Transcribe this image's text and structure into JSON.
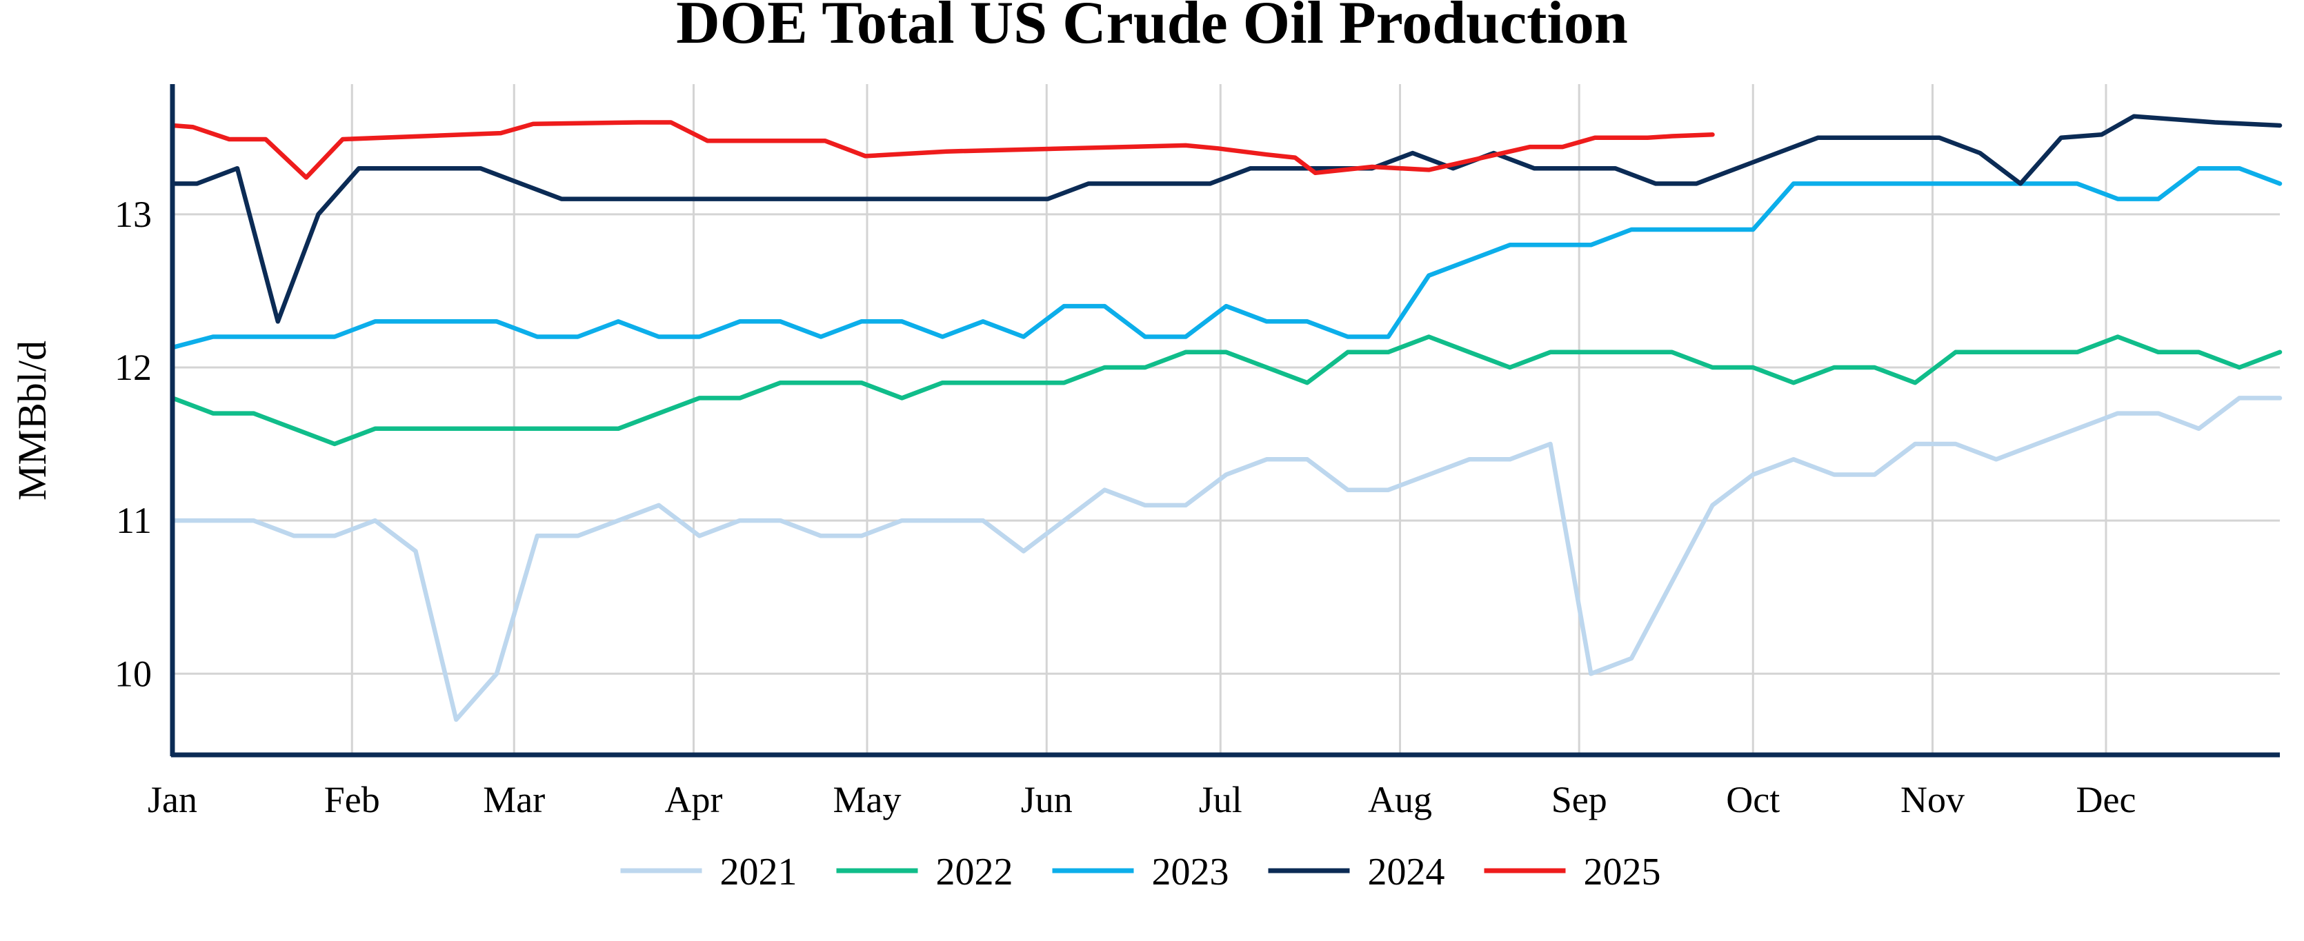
{
  "chart_data": {
    "type": "line",
    "title": "DOE Total US Crude Oil Production",
    "ylabel": "MMBbl/d",
    "xlabel": "",
    "x_unit": "week of year",
    "x_range": [
      1,
      53
    ],
    "ylim": [
      9.47,
      13.85
    ],
    "yticks": [
      10,
      11,
      12,
      13
    ],
    "ytick_labels": [
      "10",
      "11",
      "12",
      "13"
    ],
    "month_ticks": [
      {
        "label": "Jan",
        "week": 1.0
      },
      {
        "label": "Feb",
        "week": 5.43
      },
      {
        "label": "Mar",
        "week": 9.43
      },
      {
        "label": "Apr",
        "week": 13.86
      },
      {
        "label": "May",
        "week": 18.14
      },
      {
        "label": "Jun",
        "week": 22.57
      },
      {
        "label": "Jul",
        "week": 26.86
      },
      {
        "label": "Aug",
        "week": 31.29
      },
      {
        "label": "Sep",
        "week": 35.71
      },
      {
        "label": "Oct",
        "week": 40.0
      },
      {
        "label": "Nov",
        "week": 44.43
      },
      {
        "label": "Dec",
        "week": 48.71
      }
    ],
    "grid": true,
    "legend_position": "bottom",
    "series": [
      {
        "name": "2021",
        "color": "#bdd7ee",
        "points": [
          [
            1,
            11.0
          ],
          [
            2,
            11.0
          ],
          [
            3,
            11.0
          ],
          [
            4,
            10.9
          ],
          [
            5,
            10.9
          ],
          [
            6,
            11.0
          ],
          [
            7,
            10.8
          ],
          [
            8,
            9.7
          ],
          [
            9,
            10.0
          ],
          [
            10,
            10.9
          ],
          [
            11,
            10.9
          ],
          [
            12,
            11.0
          ],
          [
            13,
            11.1
          ],
          [
            14,
            10.9
          ],
          [
            15,
            11.0
          ],
          [
            16,
            11.0
          ],
          [
            17,
            10.9
          ],
          [
            18,
            10.9
          ],
          [
            19,
            11.0
          ],
          [
            20,
            11.0
          ],
          [
            21,
            11.0
          ],
          [
            22,
            10.8
          ],
          [
            23,
            11.0
          ],
          [
            24,
            11.2
          ],
          [
            25,
            11.1
          ],
          [
            26,
            11.1
          ],
          [
            27,
            11.3
          ],
          [
            28,
            11.4
          ],
          [
            29,
            11.4
          ],
          [
            30,
            11.2
          ],
          [
            31,
            11.2
          ],
          [
            32,
            11.3
          ],
          [
            33,
            11.4
          ],
          [
            34,
            11.4
          ],
          [
            35,
            11.5
          ],
          [
            36,
            10.0
          ],
          [
            37,
            10.1
          ],
          [
            38,
            10.6
          ],
          [
            39,
            11.1
          ],
          [
            40,
            11.3
          ],
          [
            41,
            11.4
          ],
          [
            42,
            11.3
          ],
          [
            43,
            11.3
          ],
          [
            44,
            11.5
          ],
          [
            45,
            11.5
          ],
          [
            46,
            11.4
          ],
          [
            47,
            11.5
          ],
          [
            48,
            11.6
          ],
          [
            49,
            11.7
          ],
          [
            50,
            11.7
          ],
          [
            51,
            11.6
          ],
          [
            52,
            11.8
          ],
          [
            53,
            11.8
          ]
        ]
      },
      {
        "name": "2022",
        "color": "#10bd8a",
        "points": [
          [
            1,
            11.8
          ],
          [
            2,
            11.7
          ],
          [
            3,
            11.7
          ],
          [
            4,
            11.6
          ],
          [
            5,
            11.5
          ],
          [
            6,
            11.6
          ],
          [
            7,
            11.6
          ],
          [
            8,
            11.6
          ],
          [
            9,
            11.6
          ],
          [
            10,
            11.6
          ],
          [
            11,
            11.6
          ],
          [
            12,
            11.6
          ],
          [
            13,
            11.7
          ],
          [
            14,
            11.8
          ],
          [
            15,
            11.8
          ],
          [
            16,
            11.9
          ],
          [
            17,
            11.9
          ],
          [
            18,
            11.9
          ],
          [
            19,
            11.8
          ],
          [
            20,
            11.9
          ],
          [
            21,
            11.9
          ],
          [
            22,
            11.9
          ],
          [
            23,
            11.9
          ],
          [
            24,
            12.0
          ],
          [
            25,
            12.0
          ],
          [
            26,
            12.1
          ],
          [
            27,
            12.1
          ],
          [
            28,
            12.0
          ],
          [
            29,
            11.9
          ],
          [
            30,
            12.1
          ],
          [
            31,
            12.1
          ],
          [
            32,
            12.2
          ],
          [
            33,
            12.1
          ],
          [
            34,
            12.0
          ],
          [
            35,
            12.1
          ],
          [
            36,
            12.1
          ],
          [
            37,
            12.1
          ],
          [
            38,
            12.1
          ],
          [
            39,
            12.0
          ],
          [
            40,
            12.0
          ],
          [
            41,
            11.9
          ],
          [
            42,
            12.0
          ],
          [
            43,
            12.0
          ],
          [
            44,
            11.9
          ],
          [
            45,
            12.1
          ],
          [
            46,
            12.1
          ],
          [
            47,
            12.1
          ],
          [
            48,
            12.1
          ],
          [
            49,
            12.2
          ],
          [
            50,
            12.1
          ],
          [
            51,
            12.1
          ],
          [
            52,
            12.0
          ],
          [
            53,
            12.1
          ]
        ]
      },
      {
        "name": "2023",
        "color": "#0caeea",
        "points": [
          [
            1,
            12.13
          ],
          [
            2,
            12.2
          ],
          [
            3,
            12.2
          ],
          [
            4,
            12.2
          ],
          [
            5,
            12.2
          ],
          [
            6,
            12.3
          ],
          [
            7,
            12.3
          ],
          [
            8,
            12.3
          ],
          [
            9,
            12.3
          ],
          [
            10,
            12.2
          ],
          [
            11,
            12.2
          ],
          [
            12,
            12.3
          ],
          [
            13,
            12.2
          ],
          [
            14,
            12.2
          ],
          [
            15,
            12.3
          ],
          [
            16,
            12.3
          ],
          [
            17,
            12.2
          ],
          [
            18,
            12.3
          ],
          [
            19,
            12.3
          ],
          [
            20,
            12.2
          ],
          [
            21,
            12.3
          ],
          [
            22,
            12.2
          ],
          [
            23,
            12.4
          ],
          [
            24,
            12.4
          ],
          [
            25,
            12.2
          ],
          [
            26,
            12.2
          ],
          [
            27,
            12.4
          ],
          [
            28,
            12.3
          ],
          [
            29,
            12.3
          ],
          [
            30,
            12.2
          ],
          [
            31,
            12.2
          ],
          [
            32,
            12.6
          ],
          [
            33,
            12.7
          ],
          [
            34,
            12.8
          ],
          [
            35,
            12.8
          ],
          [
            36,
            12.8
          ],
          [
            37,
            12.9
          ],
          [
            38,
            12.9
          ],
          [
            39,
            12.9
          ],
          [
            40,
            12.9
          ],
          [
            41,
            13.2
          ],
          [
            42,
            13.2
          ],
          [
            43,
            13.2
          ],
          [
            44,
            13.2
          ],
          [
            45,
            13.2
          ],
          [
            46,
            13.2
          ],
          [
            47,
            13.2
          ],
          [
            48,
            13.2
          ],
          [
            49,
            13.1
          ],
          [
            50,
            13.1
          ],
          [
            51,
            13.3
          ],
          [
            52,
            13.3
          ],
          [
            53,
            13.2
          ]
        ]
      },
      {
        "name": "2024",
        "color": "#0b2b55",
        "points": [
          [
            1,
            13.2
          ],
          [
            1.6,
            13.2
          ],
          [
            2.6,
            13.3
          ],
          [
            3.6,
            12.3
          ],
          [
            4.6,
            13.0
          ],
          [
            5.6,
            13.3
          ],
          [
            6.6,
            13.3
          ],
          [
            7.6,
            13.3
          ],
          [
            8.6,
            13.3
          ],
          [
            9.6,
            13.2
          ],
          [
            10.6,
            13.1
          ],
          [
            11.6,
            13.1
          ],
          [
            12.6,
            13.1
          ],
          [
            13.6,
            13.1
          ],
          [
            14.6,
            13.1
          ],
          [
            15.6,
            13.1
          ],
          [
            16.6,
            13.1
          ],
          [
            17.6,
            13.1
          ],
          [
            18.6,
            13.1
          ],
          [
            19.6,
            13.1
          ],
          [
            20.6,
            13.1
          ],
          [
            21.6,
            13.1
          ],
          [
            22.6,
            13.1
          ],
          [
            23.6,
            13.2
          ],
          [
            24.6,
            13.2
          ],
          [
            25.6,
            13.2
          ],
          [
            26.6,
            13.2
          ],
          [
            27.6,
            13.3
          ],
          [
            28.6,
            13.3
          ],
          [
            29.6,
            13.3
          ],
          [
            30.6,
            13.3
          ],
          [
            31.6,
            13.4
          ],
          [
            32.6,
            13.3
          ],
          [
            33.6,
            13.4
          ],
          [
            34.6,
            13.3
          ],
          [
            35.6,
            13.3
          ],
          [
            36.6,
            13.3
          ],
          [
            37.6,
            13.2
          ],
          [
            38.6,
            13.2
          ],
          [
            39.6,
            13.3
          ],
          [
            40.6,
            13.4
          ],
          [
            41.6,
            13.5
          ],
          [
            42.6,
            13.5
          ],
          [
            43.6,
            13.5
          ],
          [
            44.6,
            13.5
          ],
          [
            45.6,
            13.4
          ],
          [
            46.6,
            13.2
          ],
          [
            47.6,
            13.5
          ],
          [
            48.6,
            13.52
          ],
          [
            49.4,
            13.64
          ],
          [
            51.4,
            13.6
          ],
          [
            53,
            13.58
          ]
        ]
      },
      {
        "name": "2025",
        "color": "#ee1c1c",
        "points": [
          [
            1,
            13.58
          ],
          [
            1.5,
            13.57
          ],
          [
            2.4,
            13.49
          ],
          [
            3.3,
            13.49
          ],
          [
            4.3,
            13.24
          ],
          [
            5.2,
            13.49
          ],
          [
            9.1,
            13.53
          ],
          [
            9.9,
            13.59
          ],
          [
            12.5,
            13.6
          ],
          [
            13.3,
            13.6
          ],
          [
            14.2,
            13.48
          ],
          [
            17.1,
            13.48
          ],
          [
            18.1,
            13.38
          ],
          [
            20.1,
            13.41
          ],
          [
            26.0,
            13.45
          ],
          [
            26.8,
            13.43
          ],
          [
            28.0,
            13.39
          ],
          [
            28.7,
            13.37
          ],
          [
            29.2,
            13.27
          ],
          [
            30.6,
            13.31
          ],
          [
            32.0,
            13.29
          ],
          [
            34.5,
            13.44
          ],
          [
            35.3,
            13.44
          ],
          [
            36.1,
            13.5
          ],
          [
            37.4,
            13.5
          ],
          [
            38.0,
            13.51
          ],
          [
            39.0,
            13.52
          ]
        ]
      }
    ]
  }
}
